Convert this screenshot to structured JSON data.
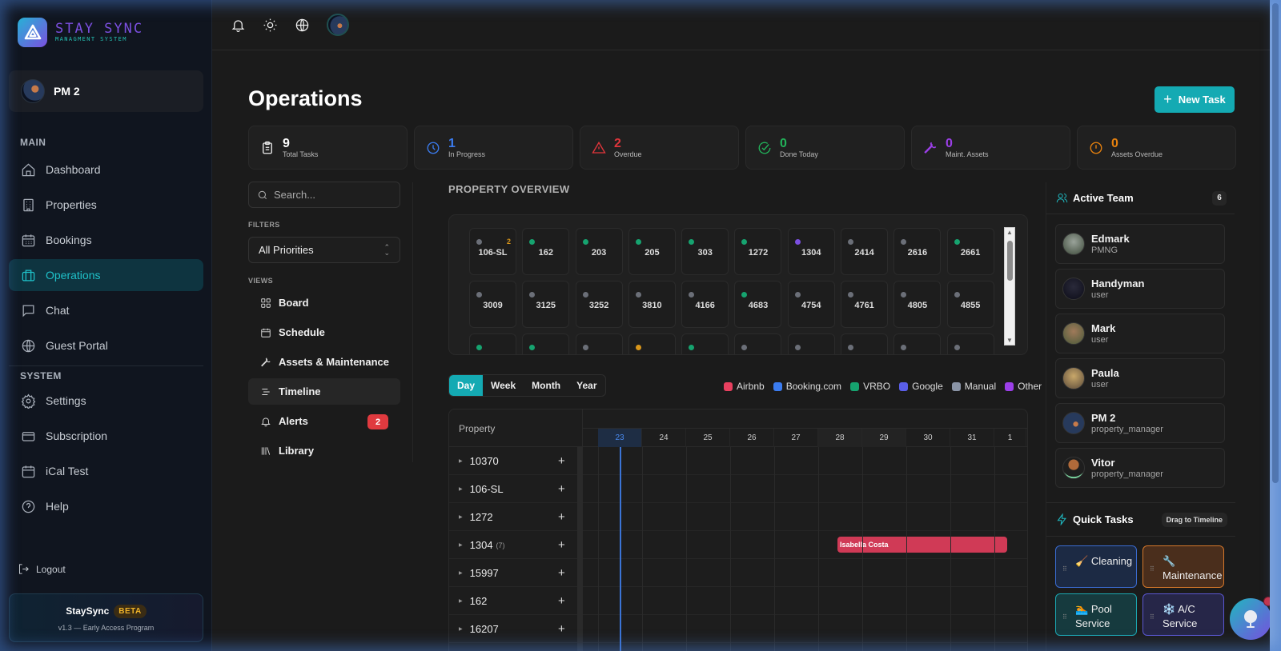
{
  "app": {
    "brand_title": "STAY SYNC",
    "brand_subtitle": "MANAGMENT SYSTEM"
  },
  "sidebar": {
    "user_name": "PM 2",
    "main_label": "MAIN",
    "main_items": [
      {
        "label": "Dashboard",
        "icon": "home-icon"
      },
      {
        "label": "Properties",
        "icon": "building-icon"
      },
      {
        "label": "Bookings",
        "icon": "calendar-icon"
      },
      {
        "label": "Operations",
        "icon": "briefcase-icon",
        "active": true
      },
      {
        "label": "Chat",
        "icon": "chat-icon"
      },
      {
        "label": "Guest Portal",
        "icon": "globe-icon"
      }
    ],
    "system_label": "SYSTEM",
    "system_items": [
      {
        "label": "Settings",
        "icon": "gear-icon"
      },
      {
        "label": "Subscription",
        "icon": "credit-card-icon"
      },
      {
        "label": "iCal Test",
        "icon": "calendar-icon"
      },
      {
        "label": "Help",
        "icon": "help-icon"
      }
    ],
    "logout_label": "Logout",
    "beta_card": {
      "title": "StaySync",
      "badge": "BETA",
      "subtitle": "v1.3 — Early Access Program"
    }
  },
  "topbar": {
    "icons": [
      "bell-icon",
      "sun-icon",
      "globe-icon",
      "user-avatar"
    ]
  },
  "page": {
    "title": "Operations",
    "new_task_label": "New Task"
  },
  "stats": [
    {
      "value": "9",
      "label": "Total Tasks",
      "color": "#ffffff",
      "icon": "clipboard-icon"
    },
    {
      "value": "1",
      "label": "In Progress",
      "color": "#3b7cf0",
      "icon": "clock-icon"
    },
    {
      "value": "2",
      "label": "Overdue",
      "color": "#e0353b",
      "icon": "warning-icon"
    },
    {
      "value": "0",
      "label": "Done Today",
      "color": "#22b35a",
      "icon": "check-circle-icon"
    },
    {
      "value": "0",
      "label": "Maint. Assets",
      "color": "#9b3fe8",
      "icon": "wrench-icon"
    },
    {
      "value": "0",
      "label": "Assets Overdue",
      "color": "#e8820e",
      "icon": "alert-circle-icon"
    }
  ],
  "filters": {
    "search_placeholder": "Search...",
    "filters_label": "FILTERS",
    "priority_value": "All Priorities",
    "views_label": "VIEWS",
    "views": [
      {
        "label": "Board",
        "icon": "grid-icon"
      },
      {
        "label": "Schedule",
        "icon": "calendar-icon"
      },
      {
        "label": "Assets & Maintenance",
        "icon": "wrench-icon"
      },
      {
        "label": "Timeline",
        "icon": "timeline-icon",
        "active": true
      },
      {
        "label": "Alerts",
        "icon": "bell-icon",
        "badge": "2"
      },
      {
        "label": "Library",
        "icon": "library-icon"
      }
    ]
  },
  "property_overview": {
    "title": "PROPERTY OVERVIEW",
    "tiles": [
      {
        "label": "106-SL",
        "dot": "#6b6f78",
        "count": "2"
      },
      {
        "label": "162",
        "dot": "#16a36f"
      },
      {
        "label": "203",
        "dot": "#16a36f"
      },
      {
        "label": "205",
        "dot": "#16a36f"
      },
      {
        "label": "303",
        "dot": "#16a36f"
      },
      {
        "label": "1272",
        "dot": "#16a36f"
      },
      {
        "label": "1304",
        "dot": "#7b4fe0"
      },
      {
        "label": "2414",
        "dot": "#6b6f78"
      },
      {
        "label": "2616",
        "dot": "#6b6f78"
      },
      {
        "label": "2661",
        "dot": "#16a36f"
      },
      {
        "label": "3009",
        "dot": "#6b6f78"
      },
      {
        "label": "3125",
        "dot": "#6b6f78"
      },
      {
        "label": "3252",
        "dot": "#6b6f78"
      },
      {
        "label": "3810",
        "dot": "#6b6f78"
      },
      {
        "label": "4166",
        "dot": "#6b6f78"
      },
      {
        "label": "4683",
        "dot": "#16a36f"
      },
      {
        "label": "4754",
        "dot": "#6b6f78"
      },
      {
        "label": "4761",
        "dot": "#6b6f78"
      },
      {
        "label": "4805",
        "dot": "#6b6f78"
      },
      {
        "label": "4855",
        "dot": "#6b6f78"
      },
      {
        "label": "",
        "dot": "#16a36f"
      },
      {
        "label": "",
        "dot": "#16a36f"
      },
      {
        "label": "",
        "dot": "#6b6f78"
      },
      {
        "label": "",
        "dot": "#d9961a"
      },
      {
        "label": "",
        "dot": "#16a36f"
      },
      {
        "label": "",
        "dot": "#6b6f78"
      },
      {
        "label": "",
        "dot": "#6b6f78"
      },
      {
        "label": "",
        "dot": "#6b6f78"
      },
      {
        "label": "",
        "dot": "#6b6f78"
      },
      {
        "label": "",
        "dot": "#6b6f78"
      }
    ]
  },
  "timeline": {
    "ranges": [
      "Day",
      "Week",
      "Month",
      "Year"
    ],
    "active_range": "Day",
    "legend": [
      {
        "label": "Airbnb",
        "color": "#e8405f"
      },
      {
        "label": "Booking.com",
        "color": "#3b7cf0"
      },
      {
        "label": "VRBO",
        "color": "#16a36f"
      },
      {
        "label": "Google",
        "color": "#5a5ee8"
      },
      {
        "label": "Manual",
        "color": "#8a94a6"
      },
      {
        "label": "Other",
        "color": "#9b3fe8"
      }
    ],
    "property_header": "Property",
    "dates": [
      "23",
      "24",
      "25",
      "26",
      "27",
      "28",
      "29",
      "30",
      "31",
      "1"
    ],
    "today": "23",
    "rows": [
      {
        "name": "10370",
        "sub": ""
      },
      {
        "name": "106-SL",
        "sub": ""
      },
      {
        "name": "1272",
        "sub": ""
      },
      {
        "name": "1304",
        "sub": "(7)"
      },
      {
        "name": "15997",
        "sub": ""
      },
      {
        "name": "162",
        "sub": ""
      },
      {
        "name": "16207",
        "sub": ""
      }
    ],
    "bookings": [
      {
        "row": "1304",
        "guest": "Isabella Costa",
        "source": "Airbnb",
        "color": "#d03a56"
      }
    ]
  },
  "active_team": {
    "title": "Active Team",
    "count": "6",
    "members": [
      {
        "name": "Edmark",
        "role": "PMNG"
      },
      {
        "name": "Handyman",
        "role": "user"
      },
      {
        "name": "Mark",
        "role": "user"
      },
      {
        "name": "Paula",
        "role": "user"
      },
      {
        "name": "PM 2",
        "role": "property_manager"
      },
      {
        "name": "Vitor",
        "role": "property_manager"
      }
    ]
  },
  "quick_tasks": {
    "title": "Quick Tasks",
    "hint": "Drag to Timeline",
    "items": [
      {
        "label": "Cleaning",
        "emoji": "🧹",
        "bg": "#1c2a44",
        "border": "#3a6bd0"
      },
      {
        "label": "Maintenance",
        "emoji": "🔧",
        "bg": "#4a2e1c",
        "border": "#d4772a"
      },
      {
        "label": "Pool Service",
        "emoji": "🏊",
        "bg": "#163a3e",
        "border": "#1ba6b0"
      },
      {
        "label": "A/C Service",
        "emoji": "❄️",
        "bg": "#262648",
        "border": "#5a56d0"
      }
    ]
  }
}
